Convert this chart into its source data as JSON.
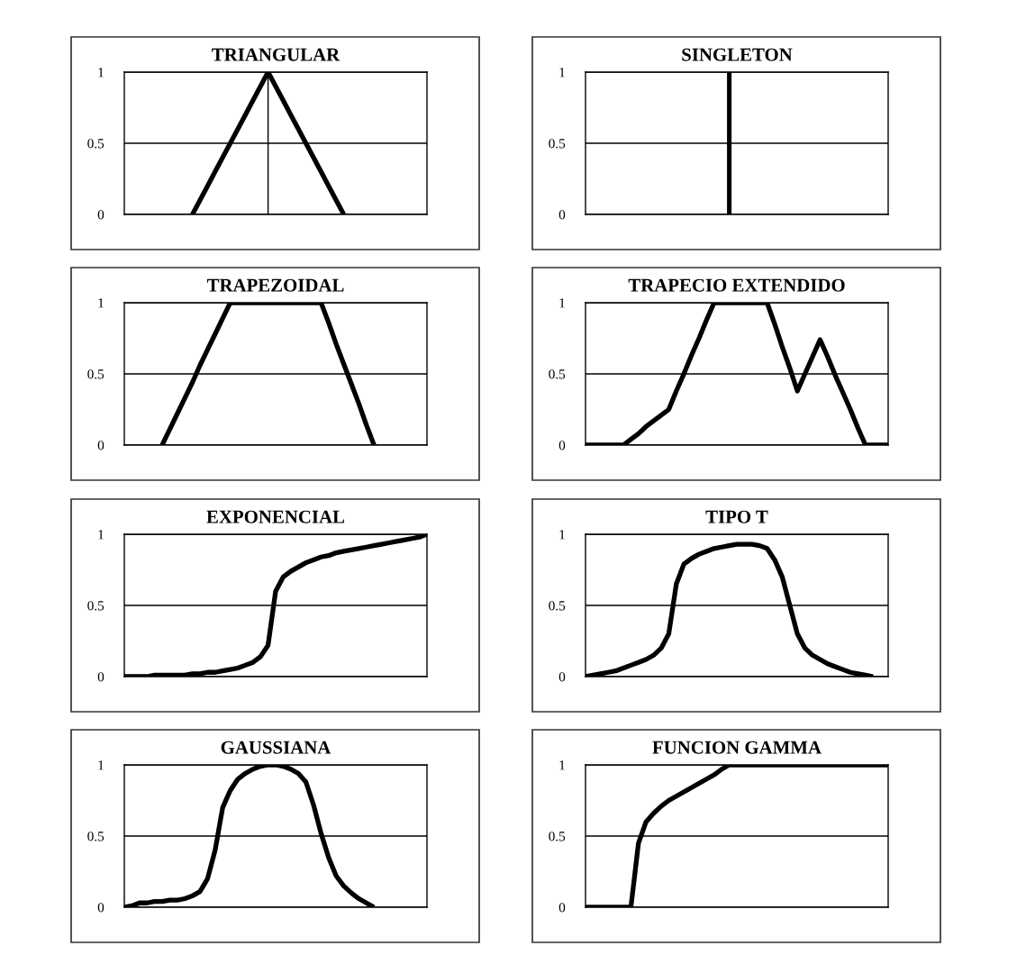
{
  "chart_data": [
    {
      "type": "line",
      "title": "TRIANGULAR",
      "categories": [
        null,
        null,
        null,
        null,
        null,
        null,
        null,
        null,
        null,
        null,
        null,
        null,
        null,
        null,
        null,
        null,
        null,
        null,
        null,
        null,
        null,
        null,
        null,
        null,
        null,
        null,
        null,
        null,
        null,
        null,
        null,
        null,
        null,
        null,
        null,
        null,
        null,
        null,
        null,
        null,
        null
      ],
      "series": [
        {
          "color": "#000000",
          "values": [
            null,
            null,
            null,
            null,
            null,
            null,
            null,
            null,
            null,
            0,
            0.1,
            0.2,
            0.3,
            0.4,
            0.5,
            0.6,
            0.7,
            0.8,
            0.9,
            1,
            0.9,
            0.8,
            0.7,
            0.6,
            0.5,
            0.4,
            0.3,
            0.2,
            0.1,
            0,
            null,
            null,
            null,
            null,
            null,
            null,
            null,
            null,
            null,
            null,
            null
          ]
        }
      ],
      "ylim": [
        0,
        1
      ],
      "yticks": [
        0,
        0.5,
        1
      ],
      "grid": true
    },
    {
      "type": "bar",
      "title": "SINGLETON",
      "categories": [
        null,
        null,
        null,
        null,
        null,
        null,
        null,
        null,
        null,
        null,
        null,
        null,
        null,
        null,
        null,
        null,
        null,
        null,
        null,
        null,
        null,
        null,
        null,
        null,
        null,
        null,
        null,
        null,
        null,
        null,
        null,
        null,
        null,
        null,
        null,
        null,
        null,
        null,
        null,
        null,
        null
      ],
      "series": [
        {
          "color": "#000000",
          "values": [
            null,
            null,
            null,
            null,
            null,
            null,
            null,
            null,
            null,
            null,
            null,
            null,
            null,
            null,
            null,
            null,
            null,
            null,
            null,
            1,
            null,
            null,
            null,
            null,
            null,
            null,
            null,
            null,
            null,
            null,
            null,
            null,
            null,
            null,
            null,
            null,
            null,
            null,
            null,
            null,
            null
          ]
        }
      ],
      "ylim": [
        0,
        1
      ],
      "yticks": [
        0,
        0.5,
        1
      ],
      "grid": "y"
    },
    {
      "type": "line",
      "title": "TRAPEZOIDAL",
      "categories": [
        null,
        null,
        null,
        null,
        null,
        null,
        null,
        null,
        null,
        null,
        null,
        null,
        null,
        null,
        null,
        null,
        null,
        null,
        null,
        null,
        null,
        null,
        null,
        null,
        null,
        null,
        null,
        null,
        null,
        null,
        null,
        null,
        null,
        null,
        null,
        null,
        null,
        null,
        null,
        null,
        null
      ],
      "series": [
        {
          "color": "#000000",
          "values": [
            null,
            null,
            null,
            null,
            null,
            0,
            0.11,
            0.22,
            0.33,
            0.44,
            0.56,
            0.67,
            0.78,
            0.89,
            1,
            1,
            1,
            1,
            1,
            1,
            1,
            1,
            1,
            1,
            1,
            1,
            1,
            0.86,
            0.71,
            0.57,
            0.43,
            0.29,
            0.14,
            0,
            null,
            null,
            null,
            null,
            null,
            null,
            null
          ]
        }
      ],
      "ylim": [
        0,
        1
      ],
      "yticks": [
        0,
        0.5,
        1
      ],
      "grid": "y"
    },
    {
      "type": "line",
      "title": "TRAPECIO EXTENDIDO",
      "categories": [
        null,
        null,
        null,
        null,
        null,
        null,
        null,
        null,
        null,
        null,
        null,
        null,
        null,
        null,
        null,
        null,
        null,
        null,
        null,
        null,
        null,
        null,
        null,
        null,
        null,
        null,
        null,
        null,
        null,
        null,
        null,
        null,
        null,
        null,
        null,
        null,
        null,
        null,
        null,
        null,
        null
      ],
      "series": [
        {
          "color": "#000000",
          "values": [
            0,
            0,
            0,
            0,
            0,
            0,
            0.04,
            0.08,
            0.13,
            0.17,
            0.21,
            0.25,
            0.38,
            0.5,
            0.63,
            0.75,
            0.88,
            1,
            1,
            1,
            1,
            1,
            1,
            1,
            1,
            0.85,
            0.69,
            0.54,
            0.38,
            0.5,
            0.62,
            0.74,
            0.62,
            0.49,
            0.37,
            0.25,
            0.12,
            0,
            0,
            0,
            0
          ]
        }
      ],
      "ylim": [
        0,
        1
      ],
      "yticks": [
        0,
        0.5,
        1
      ],
      "grid": "y"
    },
    {
      "type": "line",
      "title": "EXPONENCIAL",
      "categories": [
        null,
        null,
        null,
        null,
        null,
        null,
        null,
        null,
        null,
        null,
        null,
        null,
        null,
        null,
        null,
        null,
        null,
        null,
        null,
        null,
        null,
        null,
        null,
        null,
        null,
        null,
        null,
        null,
        null,
        null,
        null,
        null,
        null,
        null,
        null,
        null,
        null,
        null,
        null,
        null,
        null
      ],
      "series": [
        {
          "color": "#000000",
          "values": [
            0,
            0,
            0,
            0,
            0.01,
            0.01,
            0.01,
            0.01,
            0.01,
            0.02,
            0.02,
            0.03,
            0.03,
            0.04,
            0.05,
            0.06,
            0.08,
            0.1,
            0.14,
            0.22,
            0.6,
            0.7,
            0.74,
            0.77,
            0.8,
            0.82,
            0.84,
            0.85,
            0.87,
            0.88,
            0.89,
            0.9,
            0.91,
            0.92,
            0.93,
            0.94,
            0.95,
            0.96,
            0.97,
            0.98,
            1
          ]
        }
      ],
      "ylim": [
        0,
        1
      ],
      "yticks": [
        0,
        0.5,
        1
      ],
      "grid": "y"
    },
    {
      "type": "line",
      "title": "TIPO T",
      "categories": [
        null,
        null,
        null,
        null,
        null,
        null,
        null,
        null,
        null,
        null,
        null,
        null,
        null,
        null,
        null,
        null,
        null,
        null,
        null,
        null,
        null,
        null,
        null,
        null,
        null,
        null,
        null,
        null,
        null,
        null,
        null,
        null,
        null,
        null,
        null,
        null,
        null,
        null,
        null,
        null,
        null
      ],
      "series": [
        {
          "color": "#000000",
          "values": [
            0,
            0.01,
            0.02,
            0.03,
            0.04,
            0.06,
            0.08,
            0.1,
            0.12,
            0.15,
            0.2,
            0.3,
            0.65,
            0.79,
            0.83,
            0.86,
            0.88,
            0.9,
            0.91,
            0.92,
            0.93,
            0.93,
            0.93,
            0.92,
            0.9,
            0.82,
            0.7,
            0.5,
            0.3,
            0.2,
            0.15,
            0.12,
            0.09,
            0.07,
            0.05,
            0.03,
            0.02,
            0.01,
            0,
            null,
            null
          ]
        }
      ],
      "ylim": [
        0,
        1
      ],
      "yticks": [
        0,
        0.5,
        1
      ],
      "grid": "y"
    },
    {
      "type": "line",
      "title": "GAUSSIANA",
      "categories": [
        null,
        null,
        null,
        null,
        null,
        null,
        null,
        null,
        null,
        null,
        null,
        null,
        null,
        null,
        null,
        null,
        null,
        null,
        null,
        null,
        null,
        null,
        null,
        null,
        null,
        null,
        null,
        null,
        null,
        null,
        null,
        null,
        null,
        null,
        null,
        null,
        null,
        null,
        null,
        null,
        null
      ],
      "series": [
        {
          "color": "#000000",
          "values": [
            0,
            0.01,
            0.03,
            0.03,
            0.04,
            0.04,
            0.05,
            0.05,
            0.06,
            0.08,
            0.11,
            0.2,
            0.4,
            0.7,
            0.82,
            0.9,
            0.94,
            0.97,
            0.99,
            1,
            1,
            0.99,
            0.97,
            0.94,
            0.88,
            0.72,
            0.52,
            0.35,
            0.22,
            0.15,
            0.1,
            0.06,
            0.03,
            0,
            null,
            null,
            null,
            null,
            null,
            null,
            null
          ]
        }
      ],
      "ylim": [
        0,
        1
      ],
      "yticks": [
        0,
        0.5,
        1
      ],
      "grid": "y"
    },
    {
      "type": "line",
      "title": "FUNCION GAMMA",
      "categories": [
        null,
        null,
        null,
        null,
        null,
        null,
        null,
        null,
        null,
        null,
        null,
        null,
        null,
        null,
        null,
        null,
        null,
        null,
        null,
        null,
        null,
        null,
        null,
        null,
        null,
        null,
        null,
        null,
        null,
        null,
        null,
        null,
        null,
        null,
        null,
        null,
        null,
        null,
        null,
        null,
        null
      ],
      "series": [
        {
          "color": "#000000",
          "values": [
            0,
            0,
            0,
            0,
            0,
            0,
            0,
            0.45,
            0.6,
            0.66,
            0.71,
            0.75,
            0.78,
            0.81,
            0.84,
            0.87,
            0.9,
            0.93,
            0.97,
            1,
            1,
            1,
            1,
            1,
            1,
            1,
            1,
            1,
            1,
            1,
            1,
            1,
            1,
            1,
            1,
            1,
            1,
            1,
            1,
            1,
            1
          ]
        }
      ],
      "ylim": [
        0,
        1
      ],
      "yticks": [
        0,
        0.5,
        1
      ],
      "grid": "y"
    }
  ]
}
